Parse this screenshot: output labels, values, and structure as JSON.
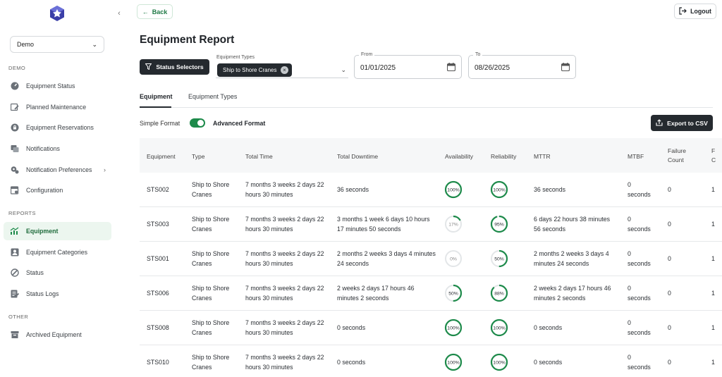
{
  "sidebar": {
    "org_select": "Demo",
    "sections": {
      "demo": "DEMO",
      "reports": "REPORTS",
      "other": "OTHER"
    },
    "demo_items": [
      {
        "label": "Equipment Status",
        "icon": "gauge-icon"
      },
      {
        "label": "Planned Maintenance",
        "icon": "calendar-edit-icon"
      },
      {
        "label": "Equipment Reservations",
        "icon": "lock-icon"
      },
      {
        "label": "Notifications",
        "icon": "notification-list-icon"
      },
      {
        "label": "Notification Preferences",
        "icon": "gears-icon"
      },
      {
        "label": "Configuration",
        "icon": "calendar-config-icon"
      }
    ],
    "report_items": [
      {
        "label": "Equipment",
        "icon": "chart-line-icon",
        "active": true
      },
      {
        "label": "Equipment Categories",
        "icon": "user-card-icon"
      },
      {
        "label": "Status",
        "icon": "status-icon"
      },
      {
        "label": "Status Logs",
        "icon": "logs-icon"
      }
    ],
    "other_items": [
      {
        "label": "Archived Equipment",
        "icon": "archive-icon"
      }
    ]
  },
  "header": {
    "back_label": "Back",
    "logout_label": "Logout"
  },
  "page": {
    "title": "Equipment Report"
  },
  "filters": {
    "status_selectors_label": "Status Selectors",
    "equipment_types_label": "Equipment Types",
    "equipment_type_chip": "Ship to Shore Cranes",
    "from_label": "From",
    "from_value": "01/01/2025",
    "to_label": "To",
    "to_value": "08/26/2025"
  },
  "tabs": [
    "Equipment",
    "Equipment Types"
  ],
  "format": {
    "simple": "Simple Format",
    "advanced": "Advanced Format",
    "advanced_on": true
  },
  "export_label": "Export to CSV",
  "table": {
    "columns": [
      "Equipment",
      "Type",
      "Total Time",
      "Total Downtime",
      "Availability",
      "Reliability",
      "MTTR",
      "MTBF",
      "Failure Count"
    ],
    "rows": [
      {
        "equipment": "STS002",
        "type": "Ship to Shore Cranes",
        "total_time": "7 months 3 weeks 2 days 22 hours 30 minutes",
        "total_downtime": "36 seconds",
        "availability": 100,
        "availability_label": "100%",
        "reliability": 100,
        "reliability_label": "100%",
        "mttr": "36 seconds",
        "mtbf": "0 seconds",
        "failure_count": "0"
      },
      {
        "equipment": "STS003",
        "type": "Ship to Shore Cranes",
        "total_time": "7 months 3 weeks 2 days 22 hours 30 minutes",
        "total_downtime": "3 months 1 week 6 days 10 hours 17 minutes 50 seconds",
        "availability": 17,
        "availability_label": "17%",
        "reliability": 95,
        "reliability_label": "95%",
        "mttr": "6 days 22 hours 38 minutes 56 seconds",
        "mtbf": "0 seconds",
        "failure_count": "0"
      },
      {
        "equipment": "STS001",
        "type": "Ship to Shore Cranes",
        "total_time": "7 months 3 weeks 2 days 22 hours 30 minutes",
        "total_downtime": "2 months 2 weeks 3 days 4 minutes 24 seconds",
        "availability": 0,
        "availability_label": "0%",
        "reliability": 50,
        "reliability_label": "50%",
        "mttr": "2 months 2 weeks 3 days 4 minutes 24 seconds",
        "mtbf": "0 seconds",
        "failure_count": "0"
      },
      {
        "equipment": "STS006",
        "type": "Ship to Shore Cranes",
        "total_time": "7 months 3 weeks 2 days 22 hours 30 minutes",
        "total_downtime": "2 weeks 2 days 17 hours 46 minutes 2 seconds",
        "availability": 50,
        "availability_label": "50%",
        "reliability": 88,
        "reliability_label": "88%",
        "mttr": "2 weeks 2 days 17 hours 46 minutes 2 seconds",
        "mtbf": "0 seconds",
        "failure_count": "0"
      },
      {
        "equipment": "STS008",
        "type": "Ship to Shore Cranes",
        "total_time": "7 months 3 weeks 2 days 22 hours 30 minutes",
        "total_downtime": "0 seconds",
        "availability": 100,
        "availability_label": "100%",
        "reliability": 100,
        "reliability_label": "100%",
        "mttr": "0 seconds",
        "mtbf": "0 seconds",
        "failure_count": "0"
      },
      {
        "equipment": "STS010",
        "type": "Ship to Shore Cranes",
        "total_time": "7 months 3 weeks 2 days 22 hours 30 minutes",
        "total_downtime": "0 seconds",
        "availability": 100,
        "availability_label": "100%",
        "reliability": 100,
        "reliability_label": "100%",
        "mttr": "0 seconds",
        "mtbf": "0 seconds",
        "failure_count": "0"
      }
    ]
  },
  "colors": {
    "accent": "#1d8a4a",
    "ring_track": "#e3e6e8",
    "dark": "#252a2f"
  }
}
